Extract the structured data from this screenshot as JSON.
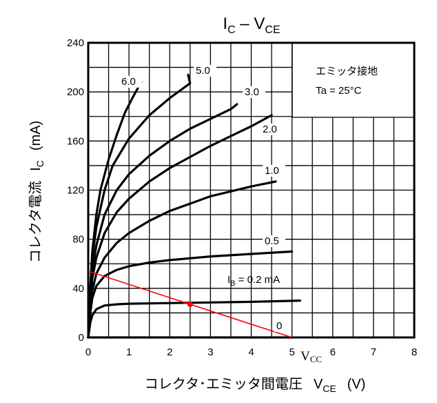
{
  "chart_data": {
    "type": "line",
    "title": {
      "main": "I",
      "main_sub": "C",
      "sep": " – ",
      "main2": "V",
      "main2_sub": "CE"
    },
    "ylabel": {
      "text": "コレクタ電流",
      "symbol": "I",
      "symbol_sub": "C",
      "unit": "(mA)"
    },
    "xlabel": {
      "text": "コレクタ･エミッタ間電圧",
      "symbol": "V",
      "symbol_sub": "CE",
      "unit": "(V)"
    },
    "xlim": [
      0,
      8
    ],
    "ylim": [
      0,
      240
    ],
    "x_ticks": [
      "0",
      "1",
      "2",
      "3",
      "4",
      "5",
      "6",
      "7",
      "8"
    ],
    "y_ticks": [
      "0",
      "40",
      "80",
      "120",
      "160",
      "200",
      "240"
    ],
    "grid": true,
    "legend_box": {
      "line1": "エミッタ接地",
      "line2": "Ta = 25°C"
    },
    "ib_label": {
      "prefix": "I",
      "sub": "B",
      "suffix": " = 0.2 mA"
    },
    "series": [
      {
        "name": "6.0",
        "points": [
          [
            0,
            0
          ],
          [
            0.05,
            40
          ],
          [
            0.1,
            70
          ],
          [
            0.2,
            100
          ],
          [
            0.3,
            120
          ],
          [
            0.5,
            145
          ],
          [
            0.7,
            165
          ],
          [
            0.9,
            183
          ],
          [
            1.1,
            196
          ],
          [
            1.3,
            208
          ]
        ]
      },
      {
        "name": "5.0",
        "points": [
          [
            0,
            0
          ],
          [
            0.05,
            40
          ],
          [
            0.1,
            65
          ],
          [
            0.2,
            90
          ],
          [
            0.4,
            120
          ],
          [
            0.6,
            140
          ],
          [
            1.0,
            162
          ],
          [
            1.5,
            181
          ],
          [
            2.0,
            195
          ],
          [
            2.5,
            207
          ],
          [
            2.5,
            207
          ],
          [
            2.45,
            214
          ]
        ]
      },
      {
        "name": "3.0",
        "points": [
          [
            0,
            0
          ],
          [
            0.05,
            35
          ],
          [
            0.1,
            55
          ],
          [
            0.2,
            75
          ],
          [
            0.4,
            100
          ],
          [
            0.7,
            120
          ],
          [
            1.0,
            133
          ],
          [
            1.5,
            148
          ],
          [
            2.0,
            160
          ],
          [
            2.5,
            170
          ],
          [
            3.0,
            178
          ],
          [
            3.5,
            186
          ],
          [
            3.65,
            190
          ]
        ]
      },
      {
        "name": "2.0",
        "points": [
          [
            0,
            0
          ],
          [
            0.05,
            30
          ],
          [
            0.1,
            48
          ],
          [
            0.2,
            65
          ],
          [
            0.4,
            85
          ],
          [
            0.7,
            102
          ],
          [
            1.0,
            113
          ],
          [
            1.5,
            127
          ],
          [
            2.0,
            138
          ],
          [
            2.5,
            147
          ],
          [
            3.0,
            156
          ],
          [
            3.5,
            164
          ],
          [
            4.0,
            172
          ],
          [
            4.5,
            181
          ]
        ]
      },
      {
        "name": "1.0",
        "points": [
          [
            0,
            0
          ],
          [
            0.05,
            25
          ],
          [
            0.1,
            38
          ],
          [
            0.2,
            52
          ],
          [
            0.4,
            65
          ],
          [
            0.7,
            77
          ],
          [
            1.0,
            85
          ],
          [
            1.5,
            95
          ],
          [
            2.0,
            103
          ],
          [
            2.5,
            109
          ],
          [
            3.0,
            115
          ],
          [
            3.5,
            119
          ],
          [
            4.0,
            123
          ],
          [
            4.6,
            127
          ]
        ]
      },
      {
        "name": "0.5",
        "points": [
          [
            0,
            0
          ],
          [
            0.05,
            20
          ],
          [
            0.1,
            32
          ],
          [
            0.2,
            42
          ],
          [
            0.4,
            50
          ],
          [
            0.7,
            55
          ],
          [
            1.0,
            58
          ],
          [
            1.5,
            61
          ],
          [
            2.0,
            63
          ],
          [
            3.0,
            66
          ],
          [
            4.0,
            68
          ],
          [
            5.0,
            70
          ]
        ]
      },
      {
        "name": "0.2",
        "points": [
          [
            0,
            0
          ],
          [
            0.05,
            12
          ],
          [
            0.1,
            18
          ],
          [
            0.2,
            23
          ],
          [
            0.4,
            26
          ],
          [
            0.7,
            27
          ],
          [
            1.0,
            27.5
          ],
          [
            2.0,
            28
          ],
          [
            3.0,
            28.5
          ],
          [
            4.0,
            29
          ],
          [
            5.2,
            30
          ]
        ]
      },
      {
        "name": "0",
        "points": [
          [
            0,
            0
          ],
          [
            5.0,
            0
          ]
        ]
      }
    ],
    "load_line": {
      "points": [
        [
          0,
          54
        ],
        [
          5,
          0
        ]
      ],
      "color": "#ff0000"
    },
    "operating_point": {
      "x": 2.5,
      "y": 27,
      "color": "#ff0000"
    },
    "vcc_label": {
      "main": "V",
      "sub": "CC"
    }
  }
}
